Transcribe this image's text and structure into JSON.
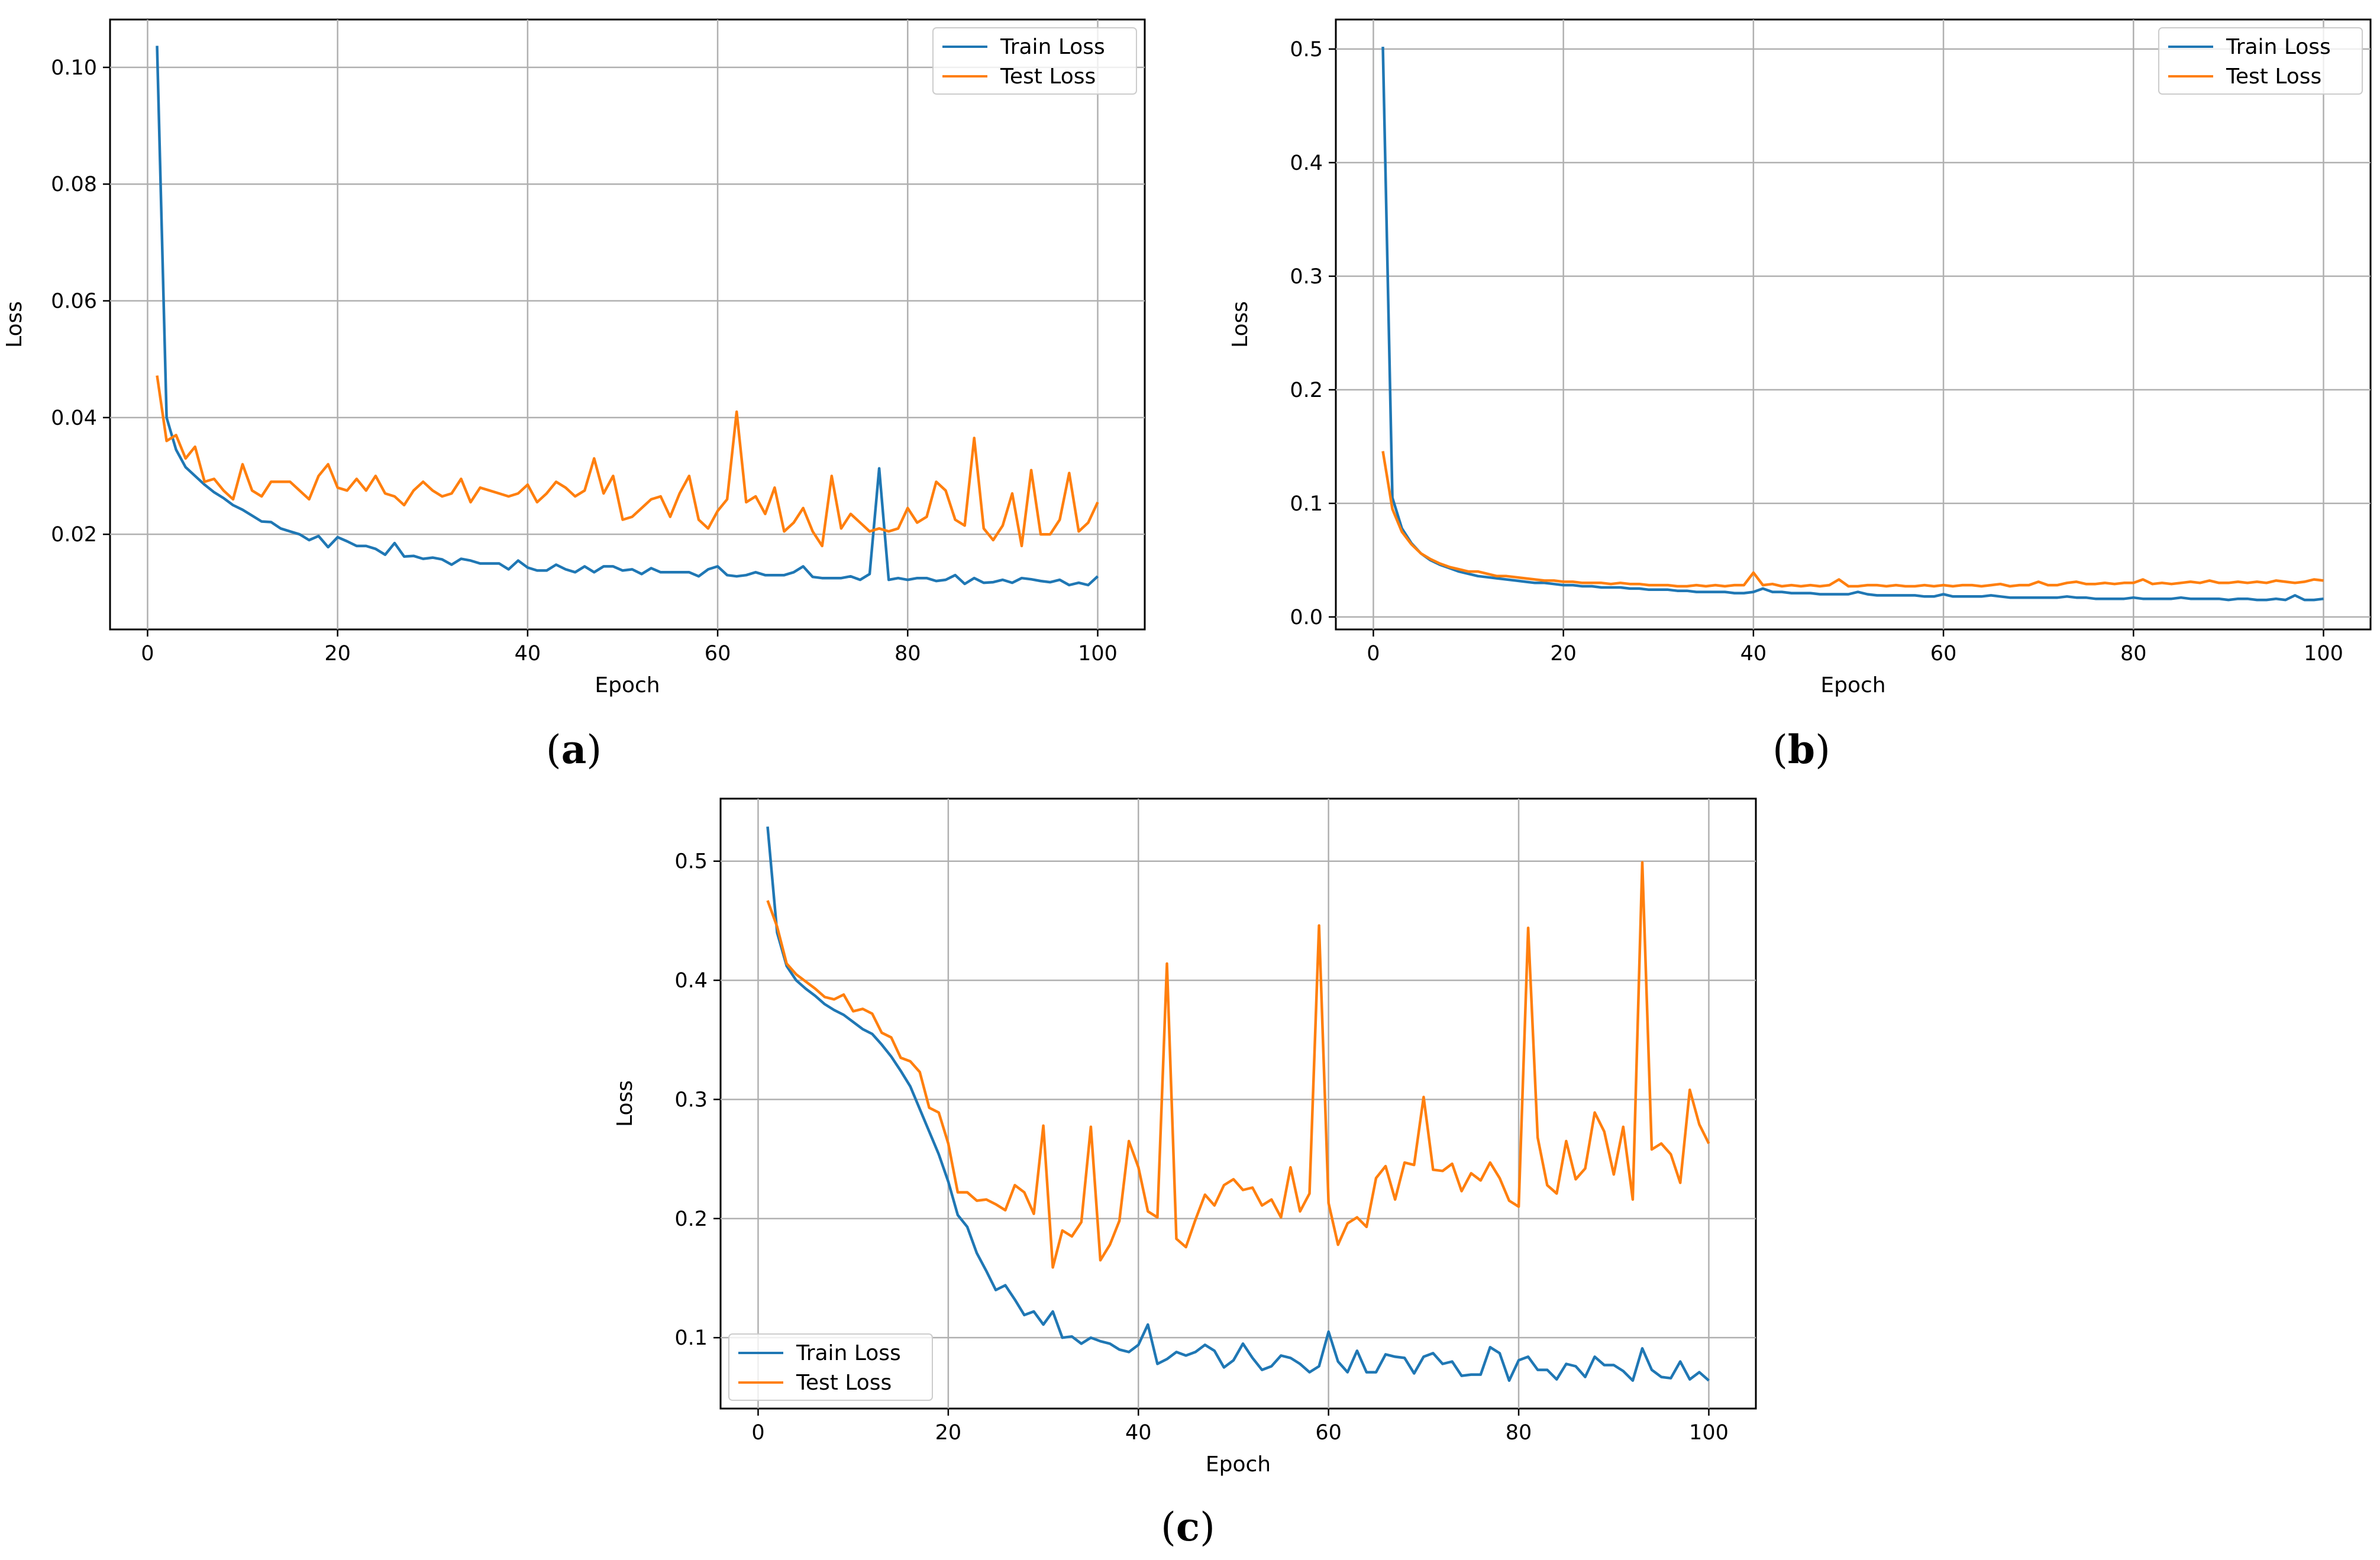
{
  "colors": {
    "train": "#1f77b4",
    "test": "#ff7f0e",
    "grid": "#b0b0b0"
  },
  "chart_data": [
    {
      "id": "a",
      "type": "line",
      "caption": "(a)",
      "caption_letter": "a",
      "xlabel": "Epoch",
      "ylabel": "Loss",
      "xlim": [
        -3.95,
        104.95
      ],
      "ylim": [
        0.0037,
        0.1082
      ],
      "xticks": [
        0,
        20,
        40,
        60,
        80,
        100
      ],
      "xtick_labels": [
        "0",
        "20",
        "40",
        "60",
        "80",
        "100"
      ],
      "yticks": [
        0.02,
        0.04,
        0.06,
        0.08,
        0.1
      ],
      "ytick_labels": [
        "0.02",
        "0.04",
        "0.06",
        "0.08",
        "0.10"
      ],
      "grid": true,
      "legend": "top-right",
      "x": [
        1,
        2,
        3,
        4,
        5,
        6,
        7,
        8,
        9,
        10,
        11,
        12,
        13,
        14,
        15,
        16,
        17,
        18,
        19,
        20,
        21,
        22,
        23,
        24,
        25,
        26,
        27,
        28,
        29,
        30,
        31,
        32,
        33,
        34,
        35,
        36,
        37,
        38,
        39,
        40,
        41,
        42,
        43,
        44,
        45,
        46,
        47,
        48,
        49,
        50,
        51,
        52,
        53,
        54,
        55,
        56,
        57,
        58,
        59,
        60,
        61,
        62,
        63,
        64,
        65,
        66,
        67,
        68,
        69,
        70,
        71,
        72,
        73,
        74,
        75,
        76,
        77,
        78,
        79,
        80,
        81,
        82,
        83,
        84,
        85,
        86,
        87,
        88,
        89,
        90,
        91,
        92,
        93,
        94,
        95,
        96,
        97,
        98,
        99,
        100
      ],
      "series": [
        {
          "name": "Train Loss",
          "key": "train",
          "values": [
            0.1037,
            0.04,
            0.0345,
            0.0315,
            0.03,
            0.0285,
            0.0272,
            0.0262,
            0.025,
            0.0242,
            0.0232,
            0.0222,
            0.0221,
            0.021,
            0.0205,
            0.02,
            0.019,
            0.0197,
            0.0178,
            0.0195,
            0.0188,
            0.018,
            0.018,
            0.0175,
            0.0165,
            0.0185,
            0.0162,
            0.0163,
            0.0158,
            0.016,
            0.0157,
            0.0148,
            0.0158,
            0.0155,
            0.015,
            0.015,
            0.015,
            0.014,
            0.0155,
            0.0143,
            0.0138,
            0.0138,
            0.0148,
            0.014,
            0.0135,
            0.0145,
            0.0135,
            0.0145,
            0.0145,
            0.0138,
            0.014,
            0.0132,
            0.0142,
            0.0135,
            0.0135,
            0.0135,
            0.0135,
            0.0128,
            0.014,
            0.0145,
            0.013,
            0.0128,
            0.013,
            0.0135,
            0.013,
            0.013,
            0.013,
            0.0135,
            0.0145,
            0.0127,
            0.0125,
            0.0125,
            0.0125,
            0.0128,
            0.0122,
            0.0132,
            0.0313,
            0.0122,
            0.0125,
            0.0122,
            0.0125,
            0.0125,
            0.012,
            0.0122,
            0.013,
            0.0115,
            0.0125,
            0.0117,
            0.0118,
            0.0122,
            0.0117,
            0.0125,
            0.0123,
            0.012,
            0.0118,
            0.0122,
            0.0113,
            0.0117,
            0.0113,
            0.0128
          ]
        },
        {
          "name": "Test Loss",
          "key": "test",
          "values": [
            0.0472,
            0.036,
            0.037,
            0.033,
            0.035,
            0.029,
            0.0295,
            0.0275,
            0.026,
            0.032,
            0.0275,
            0.0265,
            0.029,
            0.029,
            0.029,
            0.0275,
            0.026,
            0.03,
            0.032,
            0.028,
            0.0275,
            0.0295,
            0.0275,
            0.03,
            0.027,
            0.0265,
            0.025,
            0.0275,
            0.029,
            0.0275,
            0.0265,
            0.027,
            0.0295,
            0.0255,
            0.028,
            0.0275,
            0.027,
            0.0265,
            0.027,
            0.0285,
            0.0255,
            0.027,
            0.029,
            0.028,
            0.0265,
            0.0275,
            0.033,
            0.027,
            0.03,
            0.0225,
            0.023,
            0.0245,
            0.026,
            0.0265,
            0.023,
            0.027,
            0.03,
            0.0225,
            0.021,
            0.024,
            0.026,
            0.041,
            0.0255,
            0.0265,
            0.0235,
            0.028,
            0.0205,
            0.022,
            0.0245,
            0.0205,
            0.018,
            0.03,
            0.021,
            0.0235,
            0.022,
            0.0205,
            0.021,
            0.0205,
            0.021,
            0.0245,
            0.022,
            0.023,
            0.029,
            0.0275,
            0.0225,
            0.0215,
            0.0365,
            0.021,
            0.019,
            0.0215,
            0.027,
            0.018,
            0.031,
            0.02,
            0.02,
            0.0225,
            0.0305,
            0.0205,
            0.022,
            0.0255
          ]
        }
      ]
    },
    {
      "id": "b",
      "type": "line",
      "caption": "(b)",
      "caption_letter": "b",
      "xlabel": "Epoch",
      "ylabel": "Loss",
      "xlim": [
        -3.95,
        104.95
      ],
      "ylim": [
        -0.011,
        0.526
      ],
      "xticks": [
        0,
        20,
        40,
        60,
        80,
        100
      ],
      "xtick_labels": [
        "0",
        "20",
        "40",
        "60",
        "80",
        "100"
      ],
      "yticks": [
        0.0,
        0.1,
        0.2,
        0.3,
        0.4,
        0.5
      ],
      "ytick_labels": [
        "0.0",
        "0.1",
        "0.2",
        "0.3",
        "0.4",
        "0.5"
      ],
      "grid": true,
      "legend": "top-right",
      "x": [
        1,
        2,
        3,
        4,
        5,
        6,
        7,
        8,
        9,
        10,
        11,
        12,
        13,
        14,
        15,
        16,
        17,
        18,
        19,
        20,
        21,
        22,
        23,
        24,
        25,
        26,
        27,
        28,
        29,
        30,
        31,
        32,
        33,
        34,
        35,
        36,
        37,
        38,
        39,
        40,
        41,
        42,
        43,
        44,
        45,
        46,
        47,
        48,
        49,
        50,
        51,
        52,
        53,
        54,
        55,
        56,
        57,
        58,
        59,
        60,
        61,
        62,
        63,
        64,
        65,
        66,
        67,
        68,
        69,
        70,
        71,
        72,
        73,
        74,
        75,
        76,
        77,
        78,
        79,
        80,
        81,
        82,
        83,
        84,
        85,
        86,
        87,
        88,
        89,
        90,
        91,
        92,
        93,
        94,
        95,
        96,
        97,
        98,
        99,
        100
      ],
      "series": [
        {
          "name": "Train Loss",
          "key": "train",
          "values": [
            0.502,
            0.105,
            0.078,
            0.065,
            0.056,
            0.05,
            0.046,
            0.043,
            0.04,
            0.038,
            0.036,
            0.035,
            0.034,
            0.033,
            0.032,
            0.031,
            0.03,
            0.03,
            0.029,
            0.028,
            0.028,
            0.027,
            0.027,
            0.026,
            0.026,
            0.026,
            0.025,
            0.025,
            0.024,
            0.024,
            0.024,
            0.023,
            0.023,
            0.022,
            0.022,
            0.022,
            0.022,
            0.021,
            0.021,
            0.022,
            0.025,
            0.022,
            0.022,
            0.021,
            0.021,
            0.021,
            0.02,
            0.02,
            0.02,
            0.02,
            0.022,
            0.02,
            0.019,
            0.019,
            0.019,
            0.019,
            0.019,
            0.018,
            0.018,
            0.02,
            0.018,
            0.018,
            0.018,
            0.018,
            0.019,
            0.018,
            0.017,
            0.017,
            0.017,
            0.017,
            0.017,
            0.017,
            0.018,
            0.017,
            0.017,
            0.016,
            0.016,
            0.016,
            0.016,
            0.017,
            0.016,
            0.016,
            0.016,
            0.016,
            0.017,
            0.016,
            0.016,
            0.016,
            0.016,
            0.015,
            0.016,
            0.016,
            0.015,
            0.015,
            0.016,
            0.015,
            0.019,
            0.015,
            0.015,
            0.016
          ]
        },
        {
          "name": "Test Loss",
          "key": "test",
          "values": [
            0.146,
            0.095,
            0.075,
            0.064,
            0.056,
            0.051,
            0.047,
            0.044,
            0.042,
            0.04,
            0.04,
            0.038,
            0.036,
            0.036,
            0.035,
            0.034,
            0.033,
            0.032,
            0.032,
            0.031,
            0.031,
            0.03,
            0.03,
            0.03,
            0.029,
            0.03,
            0.029,
            0.029,
            0.028,
            0.028,
            0.028,
            0.027,
            0.027,
            0.028,
            0.027,
            0.028,
            0.027,
            0.028,
            0.028,
            0.039,
            0.028,
            0.029,
            0.027,
            0.028,
            0.027,
            0.028,
            0.027,
            0.028,
            0.033,
            0.027,
            0.027,
            0.028,
            0.028,
            0.027,
            0.028,
            0.027,
            0.027,
            0.028,
            0.027,
            0.028,
            0.027,
            0.028,
            0.028,
            0.027,
            0.028,
            0.029,
            0.027,
            0.028,
            0.028,
            0.031,
            0.028,
            0.028,
            0.03,
            0.031,
            0.029,
            0.029,
            0.03,
            0.029,
            0.03,
            0.03,
            0.033,
            0.029,
            0.03,
            0.029,
            0.03,
            0.031,
            0.03,
            0.032,
            0.03,
            0.03,
            0.031,
            0.03,
            0.031,
            0.03,
            0.032,
            0.031,
            0.03,
            0.031,
            0.033,
            0.032
          ]
        }
      ]
    },
    {
      "id": "c",
      "type": "line",
      "caption": "(c)",
      "caption_letter": "c",
      "xlabel": "Epoch",
      "ylabel": "Loss",
      "xlim": [
        -3.95,
        104.95
      ],
      "ylim": [
        0.0405,
        0.5525
      ],
      "xticks": [
        0,
        20,
        40,
        60,
        80,
        100
      ],
      "xtick_labels": [
        "0",
        "20",
        "40",
        "60",
        "80",
        "100"
      ],
      "yticks": [
        0.1,
        0.2,
        0.3,
        0.4,
        0.5
      ],
      "ytick_labels": [
        "0.1",
        "0.2",
        "0.3",
        "0.4",
        "0.5"
      ],
      "grid": true,
      "legend": "bottom-left",
      "x": [
        1,
        2,
        3,
        4,
        5,
        6,
        7,
        8,
        9,
        10,
        11,
        12,
        13,
        14,
        15,
        16,
        17,
        18,
        19,
        20,
        21,
        22,
        23,
        24,
        25,
        26,
        27,
        28,
        29,
        30,
        31,
        32,
        33,
        34,
        35,
        36,
        37,
        38,
        39,
        40,
        41,
        42,
        43,
        44,
        45,
        46,
        47,
        48,
        49,
        50,
        51,
        52,
        53,
        54,
        55,
        56,
        57,
        58,
        59,
        60,
        61,
        62,
        63,
        64,
        65,
        66,
        67,
        68,
        69,
        70,
        71,
        72,
        73,
        74,
        75,
        76,
        77,
        78,
        79,
        80,
        81,
        82,
        83,
        84,
        85,
        86,
        87,
        88,
        89,
        90,
        91,
        92,
        93,
        94,
        95,
        96,
        97,
        98,
        99,
        100
      ],
      "series": [
        {
          "name": "Train Loss",
          "key": "train",
          "values": [
            0.529,
            0.44,
            0.412,
            0.4,
            0.393,
            0.387,
            0.38,
            0.375,
            0.371,
            0.365,
            0.359,
            0.355,
            0.346,
            0.336,
            0.324,
            0.311,
            0.292,
            0.273,
            0.254,
            0.231,
            0.203,
            0.193,
            0.171,
            0.156,
            0.14,
            0.144,
            0.132,
            0.119,
            0.122,
            0.111,
            0.122,
            0.1,
            0.101,
            0.095,
            0.1,
            0.097,
            0.095,
            0.09,
            0.088,
            0.094,
            0.111,
            0.078,
            0.082,
            0.088,
            0.085,
            0.088,
            0.094,
            0.089,
            0.075,
            0.081,
            0.095,
            0.083,
            0.073,
            0.076,
            0.085,
            0.083,
            0.078,
            0.071,
            0.076,
            0.105,
            0.08,
            0.071,
            0.089,
            0.071,
            0.071,
            0.086,
            0.084,
            0.083,
            0.07,
            0.084,
            0.087,
            0.078,
            0.08,
            0.068,
            0.069,
            0.069,
            0.092,
            0.087,
            0.064,
            0.081,
            0.084,
            0.073,
            0.073,
            0.065,
            0.078,
            0.076,
            0.067,
            0.084,
            0.077,
            0.077,
            0.072,
            0.064,
            0.091,
            0.073,
            0.067,
            0.066,
            0.08,
            0.065,
            0.071,
            0.064
          ]
        },
        {
          "name": "Test Loss",
          "key": "test",
          "values": [
            0.467,
            0.445,
            0.414,
            0.405,
            0.399,
            0.393,
            0.386,
            0.384,
            0.388,
            0.374,
            0.376,
            0.372,
            0.356,
            0.352,
            0.335,
            0.332,
            0.323,
            0.293,
            0.289,
            0.263,
            0.222,
            0.222,
            0.215,
            0.216,
            0.212,
            0.207,
            0.228,
            0.222,
            0.204,
            0.278,
            0.159,
            0.19,
            0.185,
            0.197,
            0.277,
            0.165,
            0.178,
            0.198,
            0.265,
            0.243,
            0.206,
            0.201,
            0.414,
            0.183,
            0.176,
            0.199,
            0.22,
            0.211,
            0.228,
            0.233,
            0.224,
            0.226,
            0.211,
            0.216,
            0.201,
            0.243,
            0.206,
            0.221,
            0.446,
            0.213,
            0.178,
            0.196,
            0.201,
            0.193,
            0.234,
            0.244,
            0.216,
            0.247,
            0.245,
            0.302,
            0.241,
            0.24,
            0.246,
            0.223,
            0.238,
            0.232,
            0.247,
            0.234,
            0.215,
            0.21,
            0.444,
            0.268,
            0.228,
            0.221,
            0.265,
            0.233,
            0.242,
            0.289,
            0.273,
            0.237,
            0.277,
            0.216,
            0.499,
            0.258,
            0.263,
            0.254,
            0.23,
            0.308,
            0.279,
            0.263
          ]
        }
      ]
    }
  ]
}
